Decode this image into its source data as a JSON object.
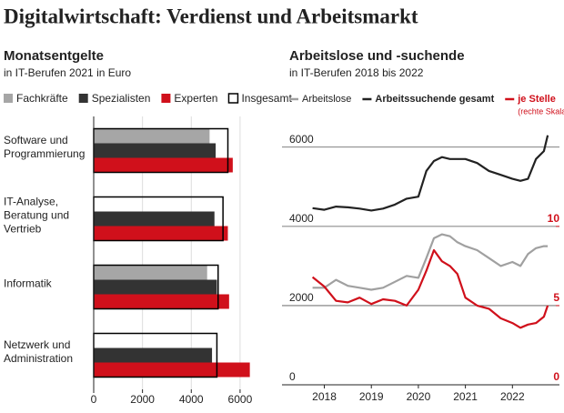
{
  "title": "Digitalwirtschaft: Verdienst und Arbeitsmarkt",
  "chart_data": [
    {
      "type": "hbar",
      "title": "Monatsentgelte",
      "subtitle": "in IT-Berufen 2021 in Euro",
      "categories": [
        "Software und Programmierung",
        "IT-Analyse, Beratung und Vertrieb",
        "Informatik",
        "Netzwerk und Administration"
      ],
      "series": [
        {
          "name": "Fachkräfte",
          "color": "#a6a6a6",
          "values": [
            4750,
            null,
            4650,
            null
          ]
        },
        {
          "name": "Spezialisten",
          "color": "#333333",
          "values": [
            5000,
            4950,
            5050,
            4850
          ]
        },
        {
          "name": "Experten",
          "color": "#d0101b",
          "values": [
            5700,
            5500,
            5550,
            6400
          ]
        },
        {
          "name": "Insgesamt",
          "color": "#000000",
          "outline": true,
          "values": [
            5500,
            5300,
            5100,
            5050
          ]
        }
      ],
      "xlim": [
        0,
        6600
      ],
      "xticks": [
        0,
        2000,
        4000,
        6000
      ],
      "grid": true
    },
    {
      "type": "line",
      "title": "Arbeitslose und -suchende",
      "subtitle": "in IT-Berufen 2018 bis 2022",
      "x": [
        2017.75,
        2018.0,
        2018.25,
        2018.5,
        2018.75,
        2019.0,
        2019.25,
        2019.5,
        2019.75,
        2020.0,
        2020.17,
        2020.33,
        2020.5,
        2020.67,
        2020.83,
        2021.0,
        2021.25,
        2021.5,
        2021.75,
        2022.0,
        2022.17,
        2022.33,
        2022.5,
        2022.67,
        2022.75
      ],
      "series": [
        {
          "name": "Arbeitslose",
          "color": "#a0a0a0",
          "values": [
            2450,
            2450,
            2650,
            2500,
            2450,
            2400,
            2450,
            2600,
            2750,
            2700,
            3200,
            3700,
            3800,
            3750,
            3600,
            3500,
            3400,
            3200,
            3000,
            3100,
            3000,
            3300,
            3450,
            3500,
            3500
          ]
        },
        {
          "name": "Arbeitssuchende gesamt",
          "color": "#222222",
          "values": [
            4460,
            4420,
            4500,
            4480,
            4450,
            4400,
            4450,
            4550,
            4700,
            4750,
            5400,
            5650,
            5750,
            5700,
            5700,
            5700,
            5600,
            5400,
            5300,
            5200,
            5150,
            5200,
            5700,
            5900,
            6300
          ]
        },
        {
          "name": "je Stelle",
          "note": "(rechte Skala)",
          "color": "#d0101b",
          "axis": "y2",
          "values": [
            6.8,
            6.2,
            5.3,
            5.2,
            5.5,
            5.1,
            5.4,
            5.3,
            5.0,
            6.0,
            7.2,
            8.5,
            7.8,
            7.5,
            7.0,
            5.5,
            5.0,
            4.8,
            4.2,
            3.9,
            3.6,
            3.8,
            3.9,
            4.3,
            5.0
          ]
        }
      ],
      "xlim": [
        2017.1,
        2023.0
      ],
      "xticks": [
        2018,
        2019,
        2020,
        2021,
        2022
      ],
      "ylim": [
        0,
        6500
      ],
      "yticks": [
        0,
        2000,
        4000,
        6000
      ],
      "y2lim": [
        0,
        16.25
      ],
      "y2ticks": [
        0,
        5,
        10
      ],
      "grid": true
    }
  ]
}
